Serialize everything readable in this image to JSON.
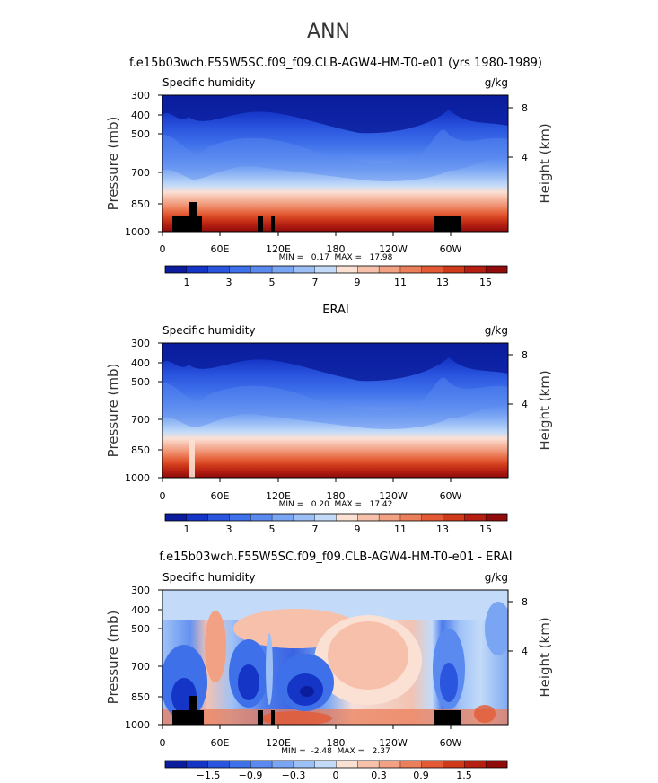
{
  "page_title": "ANN",
  "panels": [
    {
      "title": "f.e15b03wch.F55W5SC.f09_f09.CLB-AGW4-HM-T0-e01 (yrs 1980-1989)",
      "variable": "Specific humidity",
      "units": "g/kg",
      "y_axis_label": "Pressure (mb)",
      "y2_axis_label": "Height (km)",
      "y_ticks": [
        "300",
        "400",
        "500",
        "700",
        "850",
        "1000"
      ],
      "y2_ticks": [
        "8",
        "4"
      ],
      "x_ticks": [
        "0",
        "60E",
        "120E",
        "180",
        "120W",
        "60W"
      ],
      "stats": "MIN =   0.17  MAX =   17.98",
      "colorbar_labels": [
        "1",
        "3",
        "5",
        "7",
        "9",
        "11",
        "13",
        "15"
      ]
    },
    {
      "title": "ERAI",
      "variable": "Specific humidity",
      "units": "g/kg",
      "y_axis_label": "Pressure (mb)",
      "y2_axis_label": "Height (km)",
      "y_ticks": [
        "300",
        "400",
        "500",
        "700",
        "850",
        "1000"
      ],
      "y2_ticks": [
        "8",
        "4"
      ],
      "x_ticks": [
        "0",
        "60E",
        "120E",
        "180",
        "120W",
        "60W"
      ],
      "stats": "MIN =   0.20  MAX =   17.42",
      "colorbar_labels": [
        "1",
        "3",
        "5",
        "7",
        "9",
        "11",
        "13",
        "15"
      ]
    },
    {
      "title": "f.e15b03wch.F55W5SC.f09_f09.CLB-AGW4-HM-T0-e01 - ERAI",
      "variable": "Specific humidity",
      "units": "g/kg",
      "y_axis_label": "Pressure (mb)",
      "y2_axis_label": "Height (km)",
      "y_ticks": [
        "300",
        "400",
        "500",
        "700",
        "850",
        "1000"
      ],
      "y2_ticks": [
        "8",
        "4"
      ],
      "x_ticks": [
        "0",
        "60E",
        "120E",
        "180",
        "120W",
        "60W"
      ],
      "stats": "MIN =  -2.48  MAX =   2.37",
      "colorbar_labels": [
        "−1.5",
        "−0.9",
        "−0.3",
        "0",
        "0.3",
        "0.9",
        "1.5"
      ]
    }
  ],
  "colors": {
    "sequential": [
      "#0b1d9c",
      "#1535c6",
      "#2a55df",
      "#3e70ea",
      "#5a8af0",
      "#7aa5f3",
      "#9cbff6",
      "#c3dbf9",
      "#fbe0d4",
      "#f7c0ab",
      "#f2a184",
      "#ec7f5b",
      "#e35a34",
      "#cf3a1b",
      "#b51f12",
      "#900b0b"
    ],
    "diverging": [
      "#0b1d9c",
      "#1535c6",
      "#2a55df",
      "#3e70ea",
      "#5a8af0",
      "#7aa5f3",
      "#9cbff6",
      "#c3dbf9",
      "#fbe0d4",
      "#f7c0ab",
      "#f2a184",
      "#ec7f5b",
      "#e35a34",
      "#cf3a1b",
      "#b51f12",
      "#900b0b"
    ]
  },
  "chart_data": [
    {
      "type": "heatmap",
      "title": "f.e15b03wch.F55W5SC.f09_f09.CLB-AGW4-HM-T0-e01 (yrs 1980-1989)",
      "xlabel": "",
      "ylabel": "Pressure (mb)",
      "y2label": "Height (km)",
      "x_ticks": [
        "0",
        "60E",
        "120E",
        "180",
        "120W",
        "60W"
      ],
      "x": [
        0,
        30,
        60,
        90,
        120,
        150,
        180,
        210,
        240,
        270,
        300,
        330,
        360
      ],
      "y_pressure": [
        1000,
        850,
        700,
        500,
        400,
        300
      ],
      "values": [
        [
          15.5,
          15,
          14.5,
          15.5,
          16,
          15.5,
          15,
          14.5,
          14,
          14.5,
          14,
          15.5,
          15.5
        ],
        [
          10,
          9,
          8,
          11,
          12,
          11,
          10,
          9,
          8,
          8.5,
          10,
          10.5,
          10
        ],
        [
          5,
          4.5,
          3.5,
          6,
          6.5,
          6,
          5,
          4,
          3,
          3.5,
          6,
          5,
          5
        ],
        [
          1.5,
          1.5,
          1,
          2.5,
          3,
          2.5,
          2,
          1.5,
          1,
          1.2,
          2.5,
          1.5,
          1.5
        ],
        [
          0.7,
          0.7,
          0.5,
          1.2,
          1.4,
          1.2,
          1,
          0.7,
          0.5,
          0.6,
          1.2,
          0.7,
          0.7
        ],
        [
          0.3,
          0.3,
          0.2,
          0.5,
          0.6,
          0.5,
          0.4,
          0.3,
          0.2,
          0.25,
          0.5,
          0.3,
          0.3
        ]
      ],
      "min": 0.17,
      "max": 17.98,
      "colorbar_range": [
        0,
        16
      ]
    },
    {
      "type": "heatmap",
      "title": "ERAI",
      "xlabel": "",
      "ylabel": "Pressure (mb)",
      "y2label": "Height (km)",
      "x_ticks": [
        "0",
        "60E",
        "120E",
        "180",
        "120W",
        "60W"
      ],
      "x": [
        0,
        30,
        60,
        90,
        120,
        150,
        180,
        210,
        240,
        270,
        300,
        330,
        360
      ],
      "y_pressure": [
        1000,
        850,
        700,
        500,
        400,
        300
      ],
      "values": [
        [
          15.5,
          15,
          14.5,
          15.5,
          16,
          15.5,
          15,
          14.5,
          14,
          14.5,
          14,
          15.5,
          15.5
        ],
        [
          10.5,
          9.5,
          8.5,
          11,
          12,
          11,
          10,
          9,
          8.5,
          9,
          10,
          10.5,
          10.5
        ],
        [
          5,
          4.5,
          3.5,
          6,
          6.5,
          6,
          5,
          4,
          3,
          3.5,
          6,
          5,
          5
        ],
        [
          1.5,
          1.5,
          1,
          2.5,
          3,
          2.5,
          2,
          1.5,
          1,
          1.2,
          2.5,
          1.5,
          1.5
        ],
        [
          0.7,
          0.7,
          0.5,
          1.2,
          1.4,
          1.2,
          1,
          0.7,
          0.5,
          0.6,
          1.2,
          0.7,
          0.7
        ],
        [
          0.3,
          0.3,
          0.2,
          0.5,
          0.6,
          0.5,
          0.4,
          0.3,
          0.2,
          0.25,
          0.5,
          0.3,
          0.3
        ]
      ],
      "min": 0.2,
      "max": 17.42,
      "colorbar_range": [
        0,
        16
      ]
    },
    {
      "type": "heatmap",
      "title": "f.e15b03wch.F55W5SC.f09_f09.CLB-AGW4-HM-T0-e01 - ERAI",
      "xlabel": "",
      "ylabel": "Pressure (mb)",
      "y2label": "Height (km)",
      "x_ticks": [
        "0",
        "60E",
        "120E",
        "180",
        "120W",
        "60W"
      ],
      "x": [
        0,
        30,
        60,
        90,
        120,
        150,
        180,
        210,
        240,
        270,
        300,
        330,
        360
      ],
      "y_pressure": [
        1000,
        850,
        700,
        500,
        400,
        300
      ],
      "values": [
        [
          -0.3,
          -0.4,
          0.6,
          0.8,
          0.3,
          0.2,
          0.7,
          0.5,
          0.6,
          0.3,
          -0.6,
          0.4,
          0.1
        ],
        [
          -0.9,
          -1.5,
          0.3,
          -0.6,
          -1.2,
          -1.8,
          -0.6,
          0.4,
          0.3,
          -0.1,
          -1.2,
          -0.3,
          -0.2
        ],
        [
          -0.6,
          -1.2,
          0.6,
          -0.3,
          -0.9,
          -1.5,
          -0.4,
          0.5,
          0.3,
          0.1,
          -0.9,
          -0.4,
          -0.3
        ],
        [
          -0.2,
          -0.3,
          0.3,
          0.1,
          0.2,
          0.4,
          0.5,
          0.4,
          0.3,
          0.1,
          -0.3,
          -0.3,
          -0.2
        ],
        [
          -0.1,
          -0.1,
          0.0,
          0.1,
          0.1,
          0.2,
          0.2,
          0.2,
          0.1,
          0.0,
          -0.1,
          -0.1,
          -0.1
        ],
        [
          0.0,
          0.0,
          0.0,
          0.0,
          0.0,
          0.0,
          0.0,
          0.0,
          0.0,
          0.0,
          0.0,
          0.0,
          0.0
        ]
      ],
      "min": -2.48,
      "max": 2.37,
      "colorbar_range": [
        -2.4,
        2.4
      ]
    }
  ]
}
